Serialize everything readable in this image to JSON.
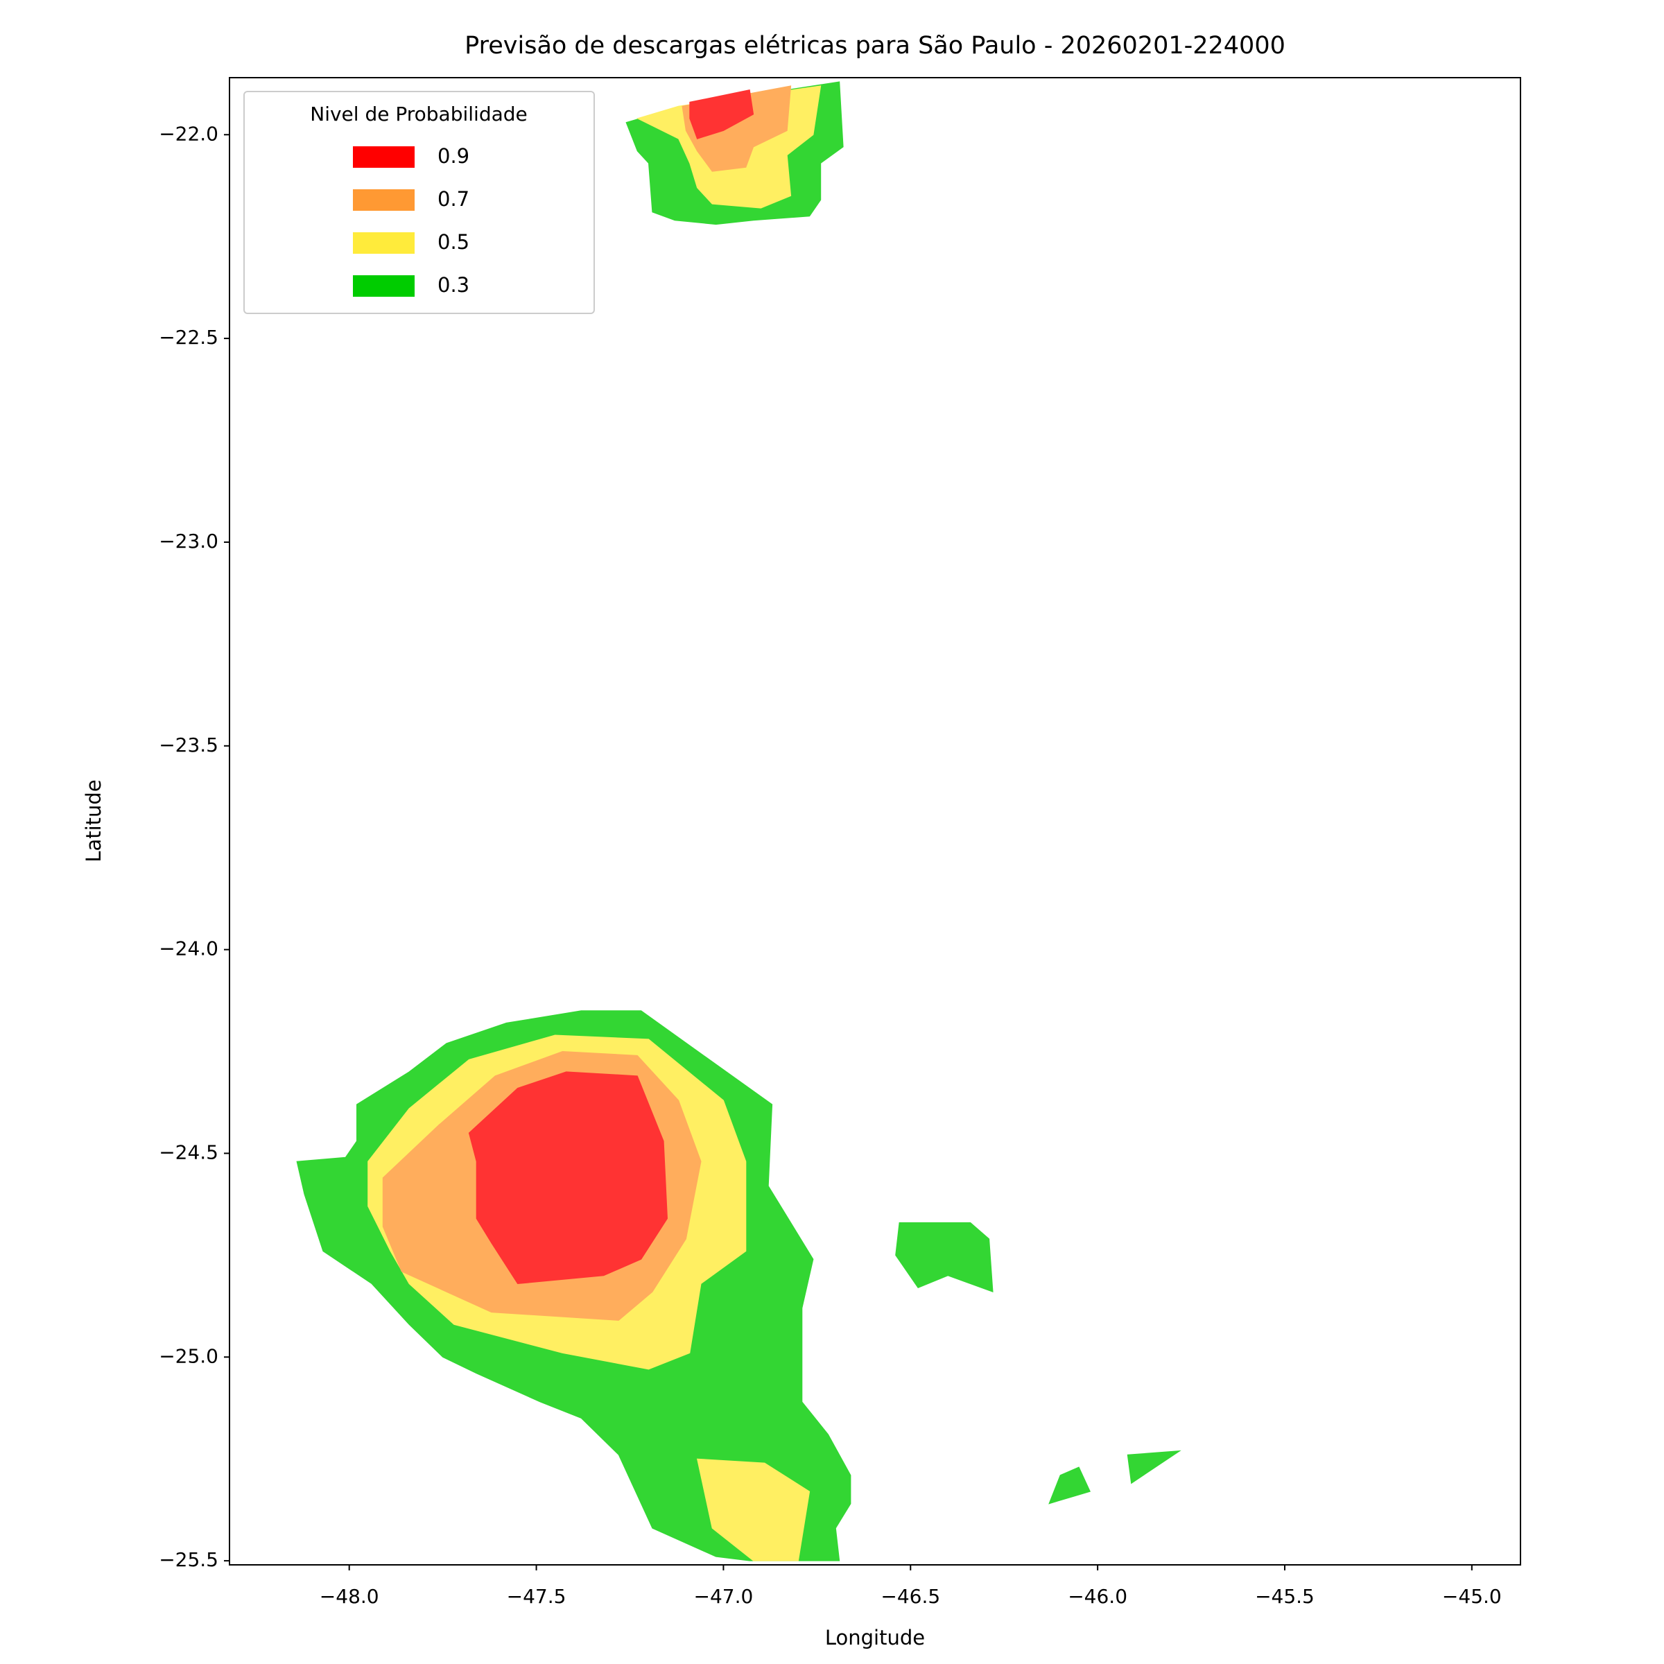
{
  "chart_data": {
    "type": "contour",
    "title": "Previsão de descargas elétricas para São Paulo - 20260201-224000",
    "x_label": "Longitude",
    "y_label": "Latitude",
    "legend_title": "Nivel de Probabilidade",
    "legend_position": "upper left",
    "alpha": 0.8,
    "xlim": [
      -48.32,
      -44.87
    ],
    "ylim": [
      -25.51,
      -21.86
    ],
    "xticks": [
      {
        "value": -48,
        "label": "−48.0"
      },
      {
        "value": -47.5,
        "label": "−47.5"
      },
      {
        "value": -47,
        "label": "−47.0"
      },
      {
        "value": -46.5,
        "label": "−46.5"
      },
      {
        "value": -46,
        "label": "−46.0"
      },
      {
        "value": -45.5,
        "label": "−45.5"
      },
      {
        "value": -45,
        "label": "−45.0"
      }
    ],
    "yticks": [
      {
        "value": -22,
        "label": "−22.0"
      },
      {
        "value": -22.5,
        "label": "−22.5"
      },
      {
        "value": -23,
        "label": "−23.0"
      },
      {
        "value": -23.5,
        "label": "−23.5"
      },
      {
        "value": -24,
        "label": "−24.0"
      },
      {
        "value": -24.5,
        "label": "−24.5"
      },
      {
        "value": -25,
        "label": "−25.0"
      },
      {
        "value": -25.5,
        "label": "−25.5"
      }
    ],
    "series": [
      {
        "name": "0.9",
        "color": "#ff0000",
        "regions": [
          {
            "x": [
              -47.09,
              -46.93,
              -46.92,
              -47.0,
              -47.07,
              -47.09
            ],
            "y": [
              -21.92,
              -21.89,
              -21.95,
              -21.99,
              -22.01,
              -21.96
            ]
          },
          {
            "x": [
              -47.68,
              -47.55,
              -47.42,
              -47.23,
              -47.16,
              -47.15,
              -47.22,
              -47.32,
              -47.55,
              -47.62,
              -47.66,
              -47.66
            ],
            "y": [
              -24.45,
              -24.34,
              -24.3,
              -24.31,
              -24.47,
              -24.66,
              -24.76,
              -24.8,
              -24.82,
              -24.72,
              -24.66,
              -24.52
            ]
          }
        ]
      },
      {
        "name": "0.7",
        "color": "#ff9933",
        "regions": [
          {
            "x": [
              -47.11,
              -46.82,
              -46.83,
              -46.92,
              -46.94,
              -47.03,
              -47.07,
              -47.1
            ],
            "y": [
              -21.93,
              -21.88,
              -21.99,
              -22.03,
              -22.08,
              -22.09,
              -22.04,
              -21.99
            ]
          },
          {
            "x": [
              -47.91,
              -47.76,
              -47.61,
              -47.43,
              -47.23,
              -47.12,
              -47.06,
              -47.1,
              -47.19,
              -47.28,
              -47.62,
              -47.86,
              -47.91
            ],
            "y": [
              -24.56,
              -24.43,
              -24.31,
              -24.25,
              -24.26,
              -24.37,
              -24.52,
              -24.71,
              -24.84,
              -24.91,
              -24.89,
              -24.79,
              -24.68
            ]
          }
        ]
      },
      {
        "name": "0.5",
        "color": "#ffeb3b",
        "regions": [
          {
            "x": [
              -47.23,
              -47.12,
              -46.74,
              -46.76,
              -46.83,
              -46.82,
              -46.9,
              -47.03,
              -47.07,
              -47.09,
              -47.12
            ],
            "y": [
              -21.96,
              -21.93,
              -21.88,
              -22.0,
              -22.05,
              -22.15,
              -22.18,
              -22.17,
              -22.13,
              -22.07,
              -22.01
            ]
          },
          {
            "x": [
              -47.95,
              -47.84,
              -47.68,
              -47.45,
              -47.2,
              -47.0,
              -46.94,
              -46.94,
              -47.06,
              -47.09,
              -47.2,
              -47.43,
              -47.72,
              -47.84,
              -47.89,
              -47.95
            ],
            "y": [
              -24.52,
              -24.39,
              -24.27,
              -24.21,
              -24.22,
              -24.37,
              -24.52,
              -24.74,
              -24.82,
              -24.99,
              -25.03,
              -24.99,
              -24.92,
              -24.82,
              -24.74,
              -24.63
            ]
          },
          {
            "x": [
              -47.07,
              -46.89,
              -46.77,
              -46.8,
              -46.92,
              -47.03
            ],
            "y": [
              -25.25,
              -25.26,
              -25.33,
              -25.5,
              -25.5,
              -25.42
            ]
          }
        ]
      },
      {
        "name": "0.3",
        "color": "#00cc00",
        "regions": [
          {
            "x": [
              -47.26,
              -47.11,
              -46.69,
              -46.68,
              -46.74,
              -46.74,
              -46.77,
              -46.92,
              -47.02,
              -47.13,
              -47.19,
              -47.2,
              -47.23
            ],
            "y": [
              -21.97,
              -21.93,
              -21.87,
              -22.03,
              -22.07,
              -22.16,
              -22.2,
              -22.21,
              -22.22,
              -22.21,
              -22.19,
              -22.07,
              -22.04
            ]
          },
          {
            "x": [
              -47.98,
              -47.84,
              -47.74,
              -47.58,
              -47.38,
              -47.22,
              -46.87,
              -46.88,
              -46.76,
              -46.79,
              -46.79,
              -46.72,
              -46.66,
              -46.66,
              -46.7,
              -46.69,
              -46.93,
              -47.02,
              -47.19,
              -47.28,
              -47.38,
              -47.49,
              -47.66,
              -47.75,
              -47.84,
              -47.94,
              -48.07,
              -48.12,
              -48.14,
              -48.01,
              -47.98
            ],
            "y": [
              -24.38,
              -24.3,
              -24.23,
              -24.18,
              -24.15,
              -24.15,
              -24.38,
              -24.58,
              -24.76,
              -24.88,
              -25.11,
              -25.19,
              -25.29,
              -25.36,
              -25.42,
              -25.5,
              -25.5,
              -25.49,
              -25.42,
              -25.24,
              -25.15,
              -25.11,
              -25.04,
              -25.0,
              -24.92,
              -24.82,
              -24.74,
              -24.6,
              -24.52,
              -24.51,
              -24.47
            ]
          },
          {
            "x": [
              -46.53,
              -46.34,
              -46.29,
              -46.28,
              -46.4,
              -46.48,
              -46.54
            ],
            "y": [
              -24.67,
              -24.67,
              -24.71,
              -24.84,
              -24.8,
              -24.83,
              -24.75
            ]
          },
          {
            "x": [
              -45.92,
              -45.78,
              -45.91
            ],
            "y": [
              -25.24,
              -25.23,
              -25.31
            ]
          },
          {
            "x": [
              -46.1,
              -46.05,
              -46.02,
              -46.13
            ],
            "y": [
              -25.29,
              -25.27,
              -25.33,
              -25.36
            ]
          }
        ]
      }
    ]
  }
}
